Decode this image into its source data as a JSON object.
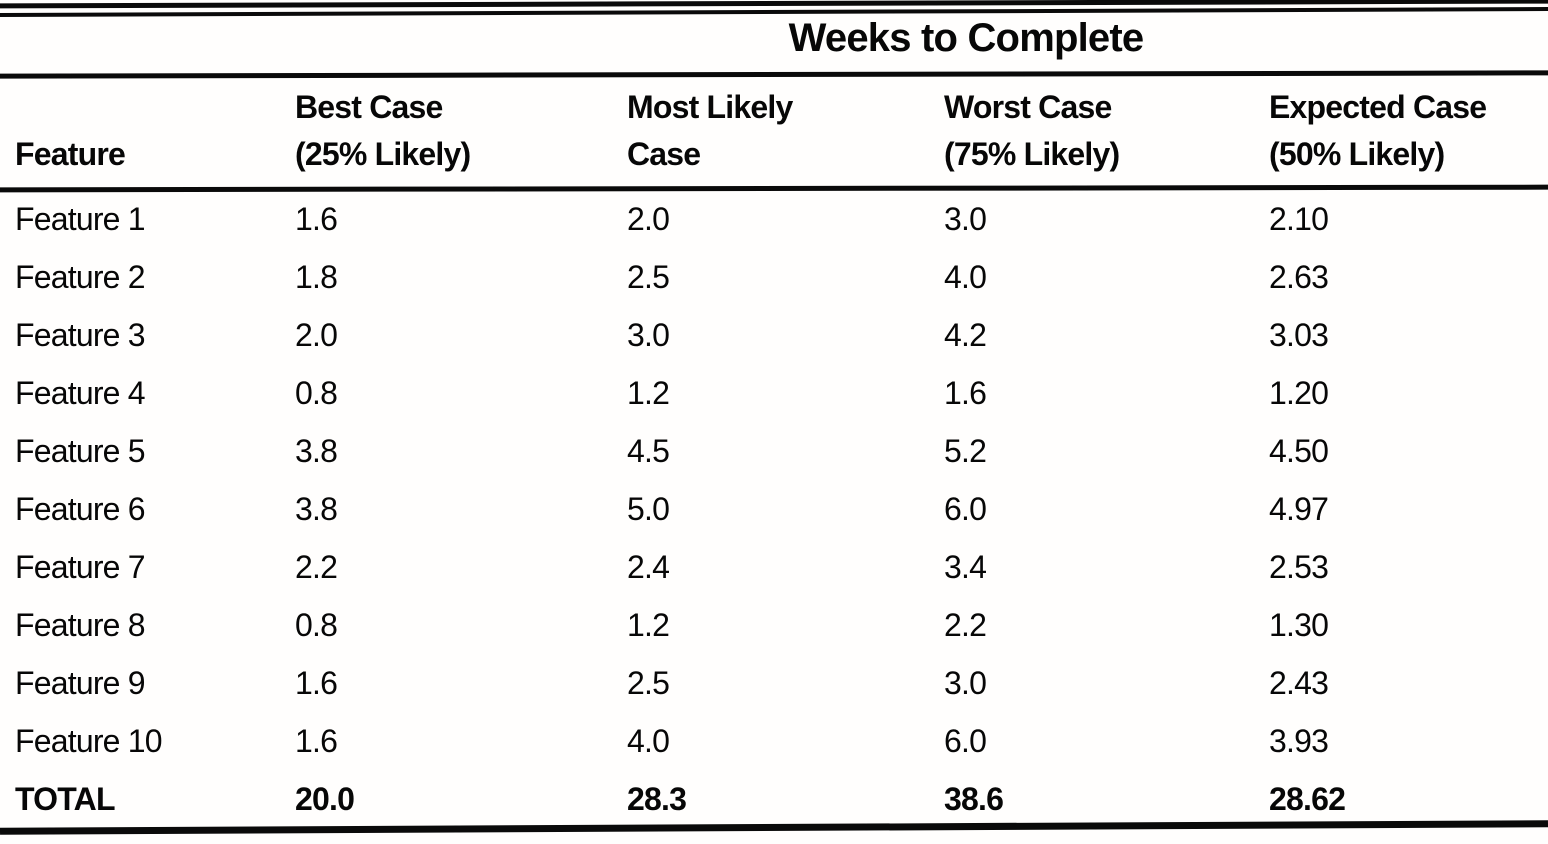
{
  "chart_data": {
    "type": "table",
    "title": "Weeks to Complete",
    "columns": [
      {
        "line1": "",
        "line2": "Feature"
      },
      {
        "line1": "Best Case",
        "line2": "(25% Likely)"
      },
      {
        "line1": "Most Likely",
        "line2": "Case"
      },
      {
        "line1": "Worst Case",
        "line2": "(75% Likely)"
      },
      {
        "line1": "Expected Case",
        "line2": "(50% Likely)"
      }
    ],
    "rows": [
      {
        "feature": "Feature 1",
        "best_case": "1.6",
        "most_likely": "2.0",
        "worst_case": "3.0",
        "expected": "2.10"
      },
      {
        "feature": "Feature 2",
        "best_case": "1.8",
        "most_likely": "2.5",
        "worst_case": "4.0",
        "expected": "2.63"
      },
      {
        "feature": "Feature 3",
        "best_case": "2.0",
        "most_likely": "3.0",
        "worst_case": "4.2",
        "expected": "3.03"
      },
      {
        "feature": "Feature 4",
        "best_case": "0.8",
        "most_likely": "1.2",
        "worst_case": "1.6",
        "expected": "1.20"
      },
      {
        "feature": "Feature 5",
        "best_case": "3.8",
        "most_likely": "4.5",
        "worst_case": "5.2",
        "expected": "4.50"
      },
      {
        "feature": "Feature 6",
        "best_case": "3.8",
        "most_likely": "5.0",
        "worst_case": "6.0",
        "expected": "4.97"
      },
      {
        "feature": "Feature 7",
        "best_case": "2.2",
        "most_likely": "2.4",
        "worst_case": "3.4",
        "expected": "2.53"
      },
      {
        "feature": "Feature 8",
        "best_case": "0.8",
        "most_likely": "1.2",
        "worst_case": "2.2",
        "expected": "1.30"
      },
      {
        "feature": "Feature 9",
        "best_case": "1.6",
        "most_likely": "2.5",
        "worst_case": "3.0",
        "expected": "2.43"
      },
      {
        "feature": "Feature 10",
        "best_case": "1.6",
        "most_likely": "4.0",
        "worst_case": "6.0",
        "expected": "3.93"
      }
    ],
    "total": {
      "feature": "TOTAL",
      "best_case": "20.0",
      "most_likely": "28.3",
      "worst_case": "38.6",
      "expected": "28.62"
    }
  }
}
